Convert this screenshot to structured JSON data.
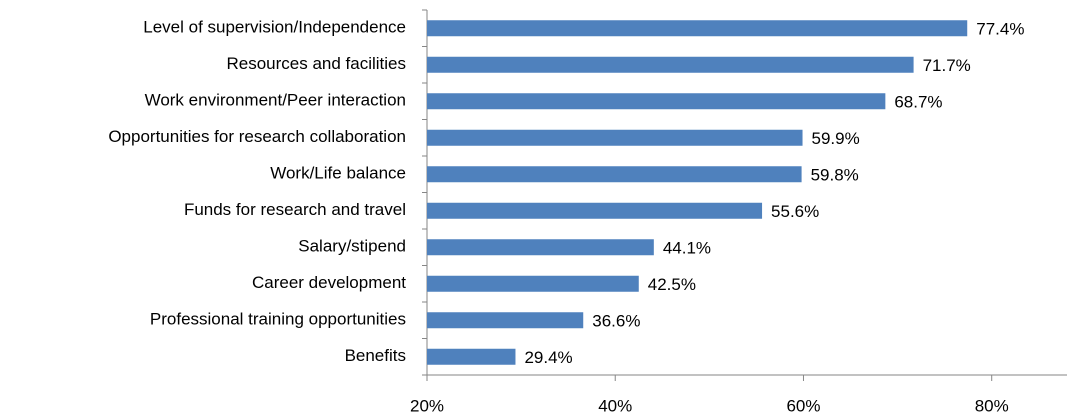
{
  "chart_data": {
    "type": "bar",
    "orientation": "horizontal",
    "categories": [
      "Level of supervision/Independence",
      "Resources and facilities",
      "Work environment/Peer interaction",
      "Opportunities for research collaboration",
      "Work/Life balance",
      "Funds for research and travel",
      "Salary/stipend",
      "Career development",
      "Professional training opportunities",
      "Benefits"
    ],
    "values": [
      77.4,
      71.7,
      68.7,
      59.9,
      59.8,
      55.6,
      44.1,
      42.5,
      36.6,
      29.4
    ],
    "value_labels": [
      "77.4%",
      "71.7%",
      "68.7%",
      "59.9%",
      "59.8%",
      "55.6%",
      "44.1%",
      "42.5%",
      "36.6%",
      "29.4%"
    ],
    "color": "#4f81bd",
    "xlim": [
      20,
      88
    ],
    "xticks": [
      {
        "value": 20,
        "label": "20%"
      },
      {
        "value": 40,
        "label": "40%"
      },
      {
        "value": 60,
        "label": "60%"
      },
      {
        "value": 80,
        "label": "80%"
      }
    ],
    "grid": false
  }
}
